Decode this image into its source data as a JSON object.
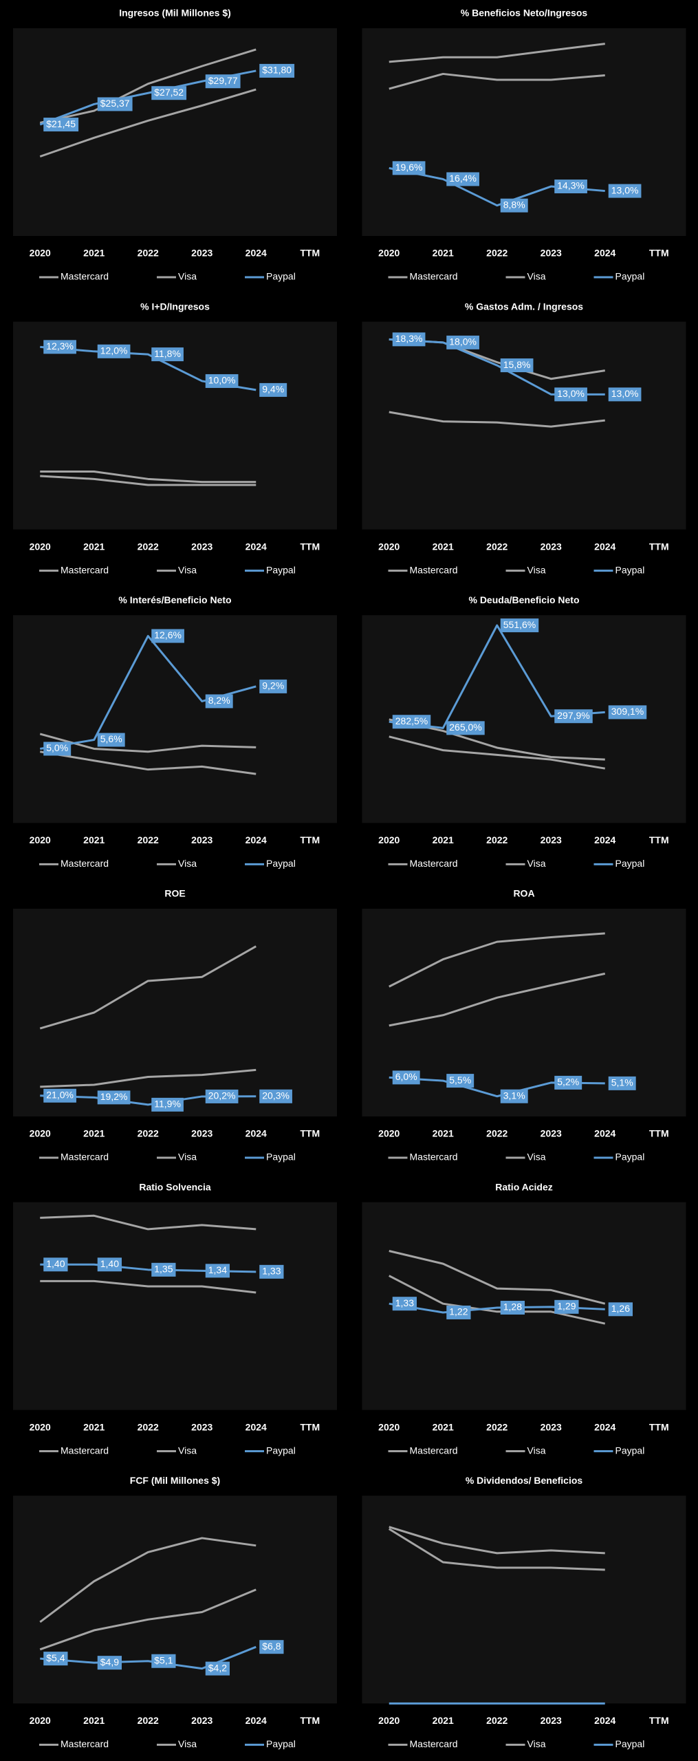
{
  "chart_data": [
    {
      "type": "line",
      "title": "Ingresos (Mil Millones $)",
      "categories": [
        "2020",
        "2021",
        "2022",
        "2023",
        "2024",
        "TTM"
      ],
      "ylim": [
        0,
        40
      ],
      "series": [
        {
          "name": "Mastercard",
          "color": "#a5a5a5",
          "values": [
            15.3,
            18.9,
            22.2,
            25.1,
            28.2,
            null
          ]
        },
        {
          "name": "Visa",
          "color": "#a5a5a5",
          "values": [
            21.8,
            24.1,
            29.3,
            32.7,
            35.9,
            null
          ]
        },
        {
          "name": "Paypal",
          "color": "#5b9bd5",
          "values": [
            21.45,
            25.37,
            27.52,
            29.77,
            31.8,
            null
          ],
          "value_labels": [
            "$21,45",
            "$25,37",
            "$27,52",
            "$29,77",
            "$31,80",
            null
          ]
        }
      ]
    },
    {
      "type": "line",
      "title": "% Beneficios Neto/Ingresos",
      "categories": [
        "2020",
        "2021",
        "2022",
        "2023",
        "2024",
        "TTM"
      ],
      "ylim": [
        0,
        60
      ],
      "series": [
        {
          "name": "Mastercard",
          "color": "#a5a5a5",
          "values": [
            42.5,
            46.8,
            45.1,
            45.1,
            46.4,
            null
          ]
        },
        {
          "name": "Visa",
          "color": "#a5a5a5",
          "values": [
            50.3,
            51.6,
            51.6,
            53.6,
            55.5,
            null
          ]
        },
        {
          "name": "Paypal",
          "color": "#5b9bd5",
          "values": [
            19.6,
            16.4,
            8.8,
            14.3,
            13.0,
            null
          ],
          "value_labels": [
            "19,6%",
            "16,4%",
            "8,8%",
            "14,3%",
            "13,0%",
            null
          ]
        }
      ]
    },
    {
      "type": "line",
      "title": "% I+D/Ingresos",
      "categories": [
        "2020",
        "2021",
        "2022",
        "2023",
        "2024",
        "TTM"
      ],
      "ylim": [
        0,
        14
      ],
      "series": [
        {
          "name": "Mastercard",
          "color": "#a5a5a5",
          "values": [
            3.6,
            3.4,
            3.0,
            3.0,
            3.0,
            null
          ]
        },
        {
          "name": "Visa",
          "color": "#a5a5a5",
          "values": [
            3.9,
            3.9,
            3.4,
            3.2,
            3.2,
            null
          ]
        },
        {
          "name": "Paypal",
          "color": "#5b9bd5",
          "values": [
            12.3,
            12.0,
            11.8,
            10.0,
            9.4,
            null
          ],
          "value_labels": [
            "12,3%",
            "12,0%",
            "11,8%",
            "10,0%",
            "9,4%",
            null
          ]
        }
      ]
    },
    {
      "type": "line",
      "title": "% Gastos Adm. / Ingresos",
      "categories": [
        "2020",
        "2021",
        "2022",
        "2023",
        "2024",
        "TTM"
      ],
      "ylim": [
        0,
        20
      ],
      "series": [
        {
          "name": "Mastercard",
          "color": "#a5a5a5",
          "values": [
            18.3,
            18.0,
            16.1,
            14.5,
            15.3,
            null
          ]
        },
        {
          "name": "Visa",
          "color": "#a5a5a5",
          "values": [
            11.3,
            10.4,
            10.3,
            9.9,
            10.5,
            null
          ]
        },
        {
          "name": "Paypal",
          "color": "#5b9bd5",
          "values": [
            18.3,
            18.0,
            15.8,
            13.0,
            13.0,
            null
          ],
          "value_labels": [
            "18,3%",
            "18,0%",
            "15,8%",
            "13,0%",
            "13,0%",
            null
          ]
        }
      ]
    },
    {
      "type": "line",
      "title": "% Interés/Beneficio Neto",
      "categories": [
        "2020",
        "2021",
        "2022",
        "2023",
        "2024",
        "TTM"
      ],
      "ylim": [
        0,
        14
      ],
      "series": [
        {
          "name": "Mastercard",
          "color": "#a5a5a5",
          "values": [
            6.0,
            5.0,
            4.8,
            5.2,
            5.1,
            null
          ]
        },
        {
          "name": "Visa",
          "color": "#a5a5a5",
          "values": [
            4.8,
            4.2,
            3.6,
            3.8,
            3.3,
            null
          ]
        },
        {
          "name": "Paypal",
          "color": "#5b9bd5",
          "values": [
            5.0,
            5.6,
            12.6,
            8.2,
            9.2,
            null
          ],
          "value_labels": [
            "5,0%",
            "5,6%",
            "12,6%",
            "8,2%",
            "9,2%",
            null
          ]
        }
      ]
    },
    {
      "type": "line",
      "title": "% Deuda/Beneficio Neto",
      "categories": [
        "2020",
        "2021",
        "2022",
        "2023",
        "2024",
        "TTM"
      ],
      "ylim": [
        0,
        580
      ],
      "series": [
        {
          "name": "Mastercard",
          "color": "#a5a5a5",
          "values": [
            289,
            257,
            210,
            184,
            177,
            null
          ]
        },
        {
          "name": "Visa",
          "color": "#a5a5a5",
          "values": [
            241,
            203,
            190,
            177,
            152,
            null
          ]
        },
        {
          "name": "Paypal",
          "color": "#5b9bd5",
          "values": [
            282.5,
            265.0,
            551.6,
            297.9,
            309.1,
            null
          ],
          "value_labels": [
            "282,5%",
            "265,0%",
            "551,6%",
            "297,9%",
            "309,1%",
            null
          ]
        }
      ]
    },
    {
      "type": "line",
      "title": "ROE",
      "categories": [
        "2020",
        "2021",
        "2022",
        "2023",
        "2024",
        "TTM"
      ],
      "ylim": [
        0,
        210
      ],
      "series": [
        {
          "name": "Mastercard",
          "color": "#a5a5a5",
          "values": [
            89,
            105,
            137,
            141,
            172,
            null
          ]
        },
        {
          "name": "Visa",
          "color": "#a5a5a5",
          "values": [
            30,
            32,
            40,
            42,
            47,
            null
          ]
        },
        {
          "name": "Paypal",
          "color": "#5b9bd5",
          "values": [
            21.0,
            19.2,
            11.9,
            20.2,
            20.3,
            null
          ],
          "value_labels": [
            "21,0%",
            "19,2%",
            "11,9%",
            "20,2%",
            "20,3%",
            null
          ]
        }
      ]
    },
    {
      "type": "line",
      "title": "ROA",
      "categories": [
        "2020",
        "2021",
        "2022",
        "2023",
        "2024",
        "TTM"
      ],
      "ylim": [
        0,
        32
      ],
      "series": [
        {
          "name": "Mastercard",
          "color": "#a5a5a5",
          "values": [
            14.0,
            15.6,
            18.3,
            20.2,
            22.0,
            null
          ]
        },
        {
          "name": "Visa",
          "color": "#a5a5a5",
          "values": [
            20.0,
            24.2,
            26.9,
            27.6,
            28.2,
            null
          ]
        },
        {
          "name": "Paypal",
          "color": "#5b9bd5",
          "values": [
            6.0,
            5.5,
            3.1,
            5.2,
            5.1,
            null
          ],
          "value_labels": [
            "6,0%",
            "5,5%",
            "3,1%",
            "5,2%",
            "5,1%",
            null
          ]
        }
      ]
    },
    {
      "type": "line",
      "title": "Ratio Solvencia",
      "categories": [
        "2020",
        "2021",
        "2022",
        "2023",
        "2024",
        "TTM"
      ],
      "ylim": [
        0,
        2
      ],
      "series": [
        {
          "name": "Mastercard",
          "color": "#a5a5a5",
          "values": [
            1.85,
            1.87,
            1.74,
            1.78,
            1.74,
            null
          ]
        },
        {
          "name": "Visa",
          "color": "#a5a5a5",
          "values": [
            1.24,
            1.24,
            1.19,
            1.19,
            1.13,
            null
          ]
        },
        {
          "name": "Paypal",
          "color": "#5b9bd5",
          "values": [
            1.4,
            1.4,
            1.35,
            1.34,
            1.33,
            null
          ],
          "value_labels": [
            "1,40",
            "1,40",
            "1,35",
            "1,34",
            "1,33",
            null
          ]
        }
      ]
    },
    {
      "type": "line",
      "title": "Ratio Acidez",
      "categories": [
        "2020",
        "2021",
        "2022",
        "2023",
        "2024",
        "TTM"
      ],
      "ylim": [
        0,
        2.6
      ],
      "series": [
        {
          "name": "Mastercard",
          "color": "#a5a5a5",
          "values": [
            1.99,
            1.83,
            1.52,
            1.5,
            1.33,
            null
          ]
        },
        {
          "name": "Visa",
          "color": "#a5a5a5",
          "values": [
            1.68,
            1.33,
            1.23,
            1.23,
            1.08,
            null
          ]
        },
        {
          "name": "Paypal",
          "color": "#5b9bd5",
          "values": [
            1.33,
            1.22,
            1.28,
            1.29,
            1.26,
            null
          ],
          "value_labels": [
            "1,33",
            "1,22",
            "1,28",
            "1,29",
            "1,26",
            null
          ]
        }
      ]
    },
    {
      "type": "line",
      "title": "FCF (Mil Millones $)",
      "categories": [
        "2020",
        "2021",
        "2022",
        "2023",
        "2024",
        "TTM"
      ],
      "ylim": [
        0,
        25
      ],
      "series": [
        {
          "name": "Mastercard",
          "color": "#a5a5a5",
          "values": [
            6.5,
            8.8,
            10.1,
            11.0,
            13.7,
            null
          ]
        },
        {
          "name": "Visa",
          "color": "#a5a5a5",
          "values": [
            9.8,
            14.7,
            18.2,
            19.9,
            19.0,
            null
          ]
        },
        {
          "name": "Paypal",
          "color": "#5b9bd5",
          "values": [
            5.4,
            4.9,
            5.1,
            4.2,
            6.8,
            null
          ],
          "value_labels": [
            "$5,4",
            "$4,9",
            "$5,1",
            "$4,2",
            "$6,8",
            null
          ]
        }
      ]
    },
    {
      "type": "line",
      "title": "% Dividendos/ Beneficios",
      "categories": [
        "2020",
        "2021",
        "2022",
        "2023",
        "2024",
        "TTM"
      ],
      "ylim": [
        0,
        30
      ],
      "series": [
        {
          "name": "Mastercard",
          "color": "#a5a5a5",
          "values": [
            25.5,
            23.1,
            21.7,
            22.1,
            21.7,
            null
          ]
        },
        {
          "name": "Visa",
          "color": "#a5a5a5",
          "values": [
            25.2,
            20.4,
            19.6,
            19.6,
            19.3,
            null
          ]
        },
        {
          "name": "Paypal",
          "color": "#5b9bd5",
          "values": [
            0,
            0,
            0,
            0,
            0,
            null
          ]
        }
      ]
    }
  ]
}
